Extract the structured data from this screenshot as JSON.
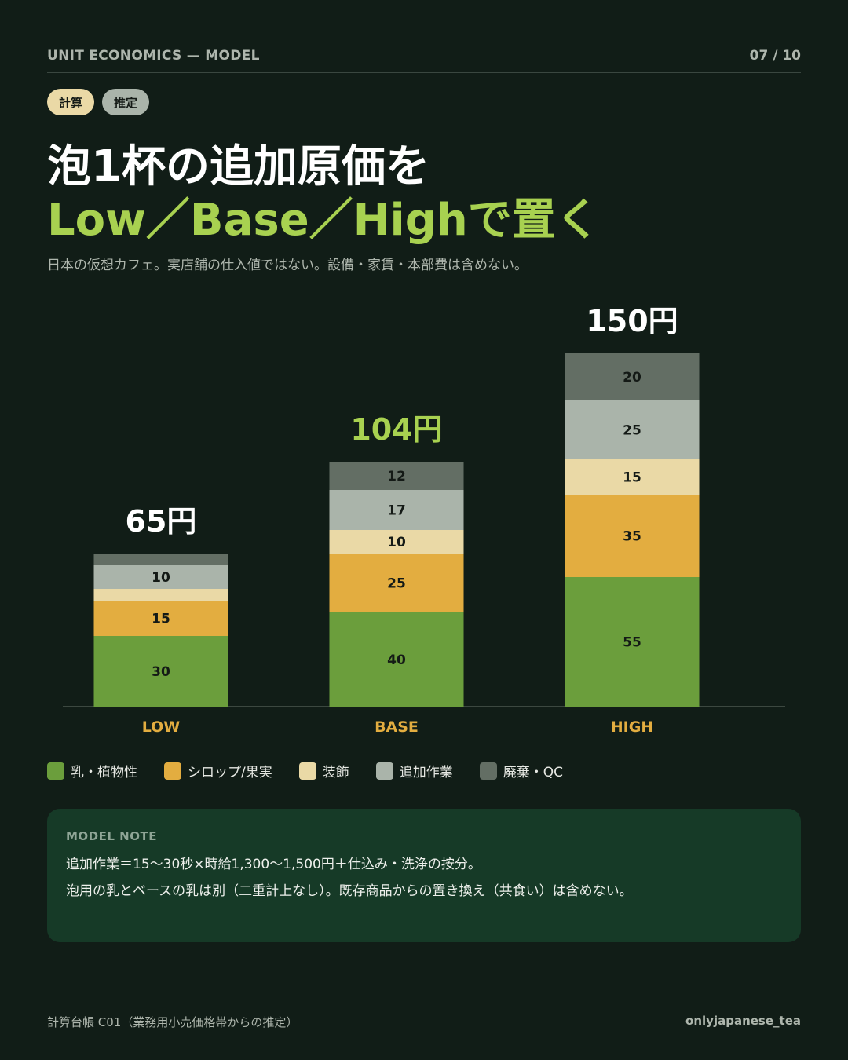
{
  "header": {
    "title": "UNIT ECONOMICS — MODEL",
    "page": "07 / 10"
  },
  "tags": [
    "計算",
    "推定"
  ],
  "title": {
    "line1": "泡1杯の追加原価を",
    "line2": "Low／Base／Highで置く"
  },
  "subtitle": "日本の仮想カフェ。実店舗の仕入値ではない。設備・家賃・本部費は含めない。",
  "chart_data": {
    "type": "bar",
    "stacked": true,
    "categories": [
      "LOW",
      "BASE",
      "HIGH"
    ],
    "totals": [
      "65円",
      "104円",
      "150円"
    ],
    "total_values": [
      65,
      104,
      150
    ],
    "series": [
      {
        "name": "乳・植物性",
        "color": "#6b9e3c",
        "values": [
          30,
          40,
          55
        ]
      },
      {
        "name": "シロップ/果実",
        "color": "#e3ad40",
        "values": [
          15,
          25,
          35
        ]
      },
      {
        "name": "装飾",
        "color": "#ead9a6",
        "values": [
          5,
          10,
          15
        ]
      },
      {
        "name": "追加作業",
        "color": "#aab4aa",
        "values": [
          10,
          17,
          25
        ]
      },
      {
        "name": "廃棄・QC",
        "color": "#636e64",
        "values": [
          5,
          12,
          20
        ]
      }
    ],
    "ylim": [
      0,
      150
    ],
    "total_label_colors": [
      "#ffffff",
      "#a8d150",
      "#ffffff"
    ],
    "category_label_color": "#e3ad40",
    "legend_position": "bottom-left"
  },
  "note": {
    "title": "MODEL NOTE",
    "line1": "追加作業＝15〜30秒×時給1,300〜1,500円＋仕込み・洗浄の按分。",
    "line2": "泡用の乳とベースの乳は別（二重計上なし）。既存商品からの置き換え（共食い）は含めない。"
  },
  "footer": {
    "source": "計算台帳 C01（業務用小売価格帯からの推定）",
    "handle": "onlyjapanese_tea"
  }
}
